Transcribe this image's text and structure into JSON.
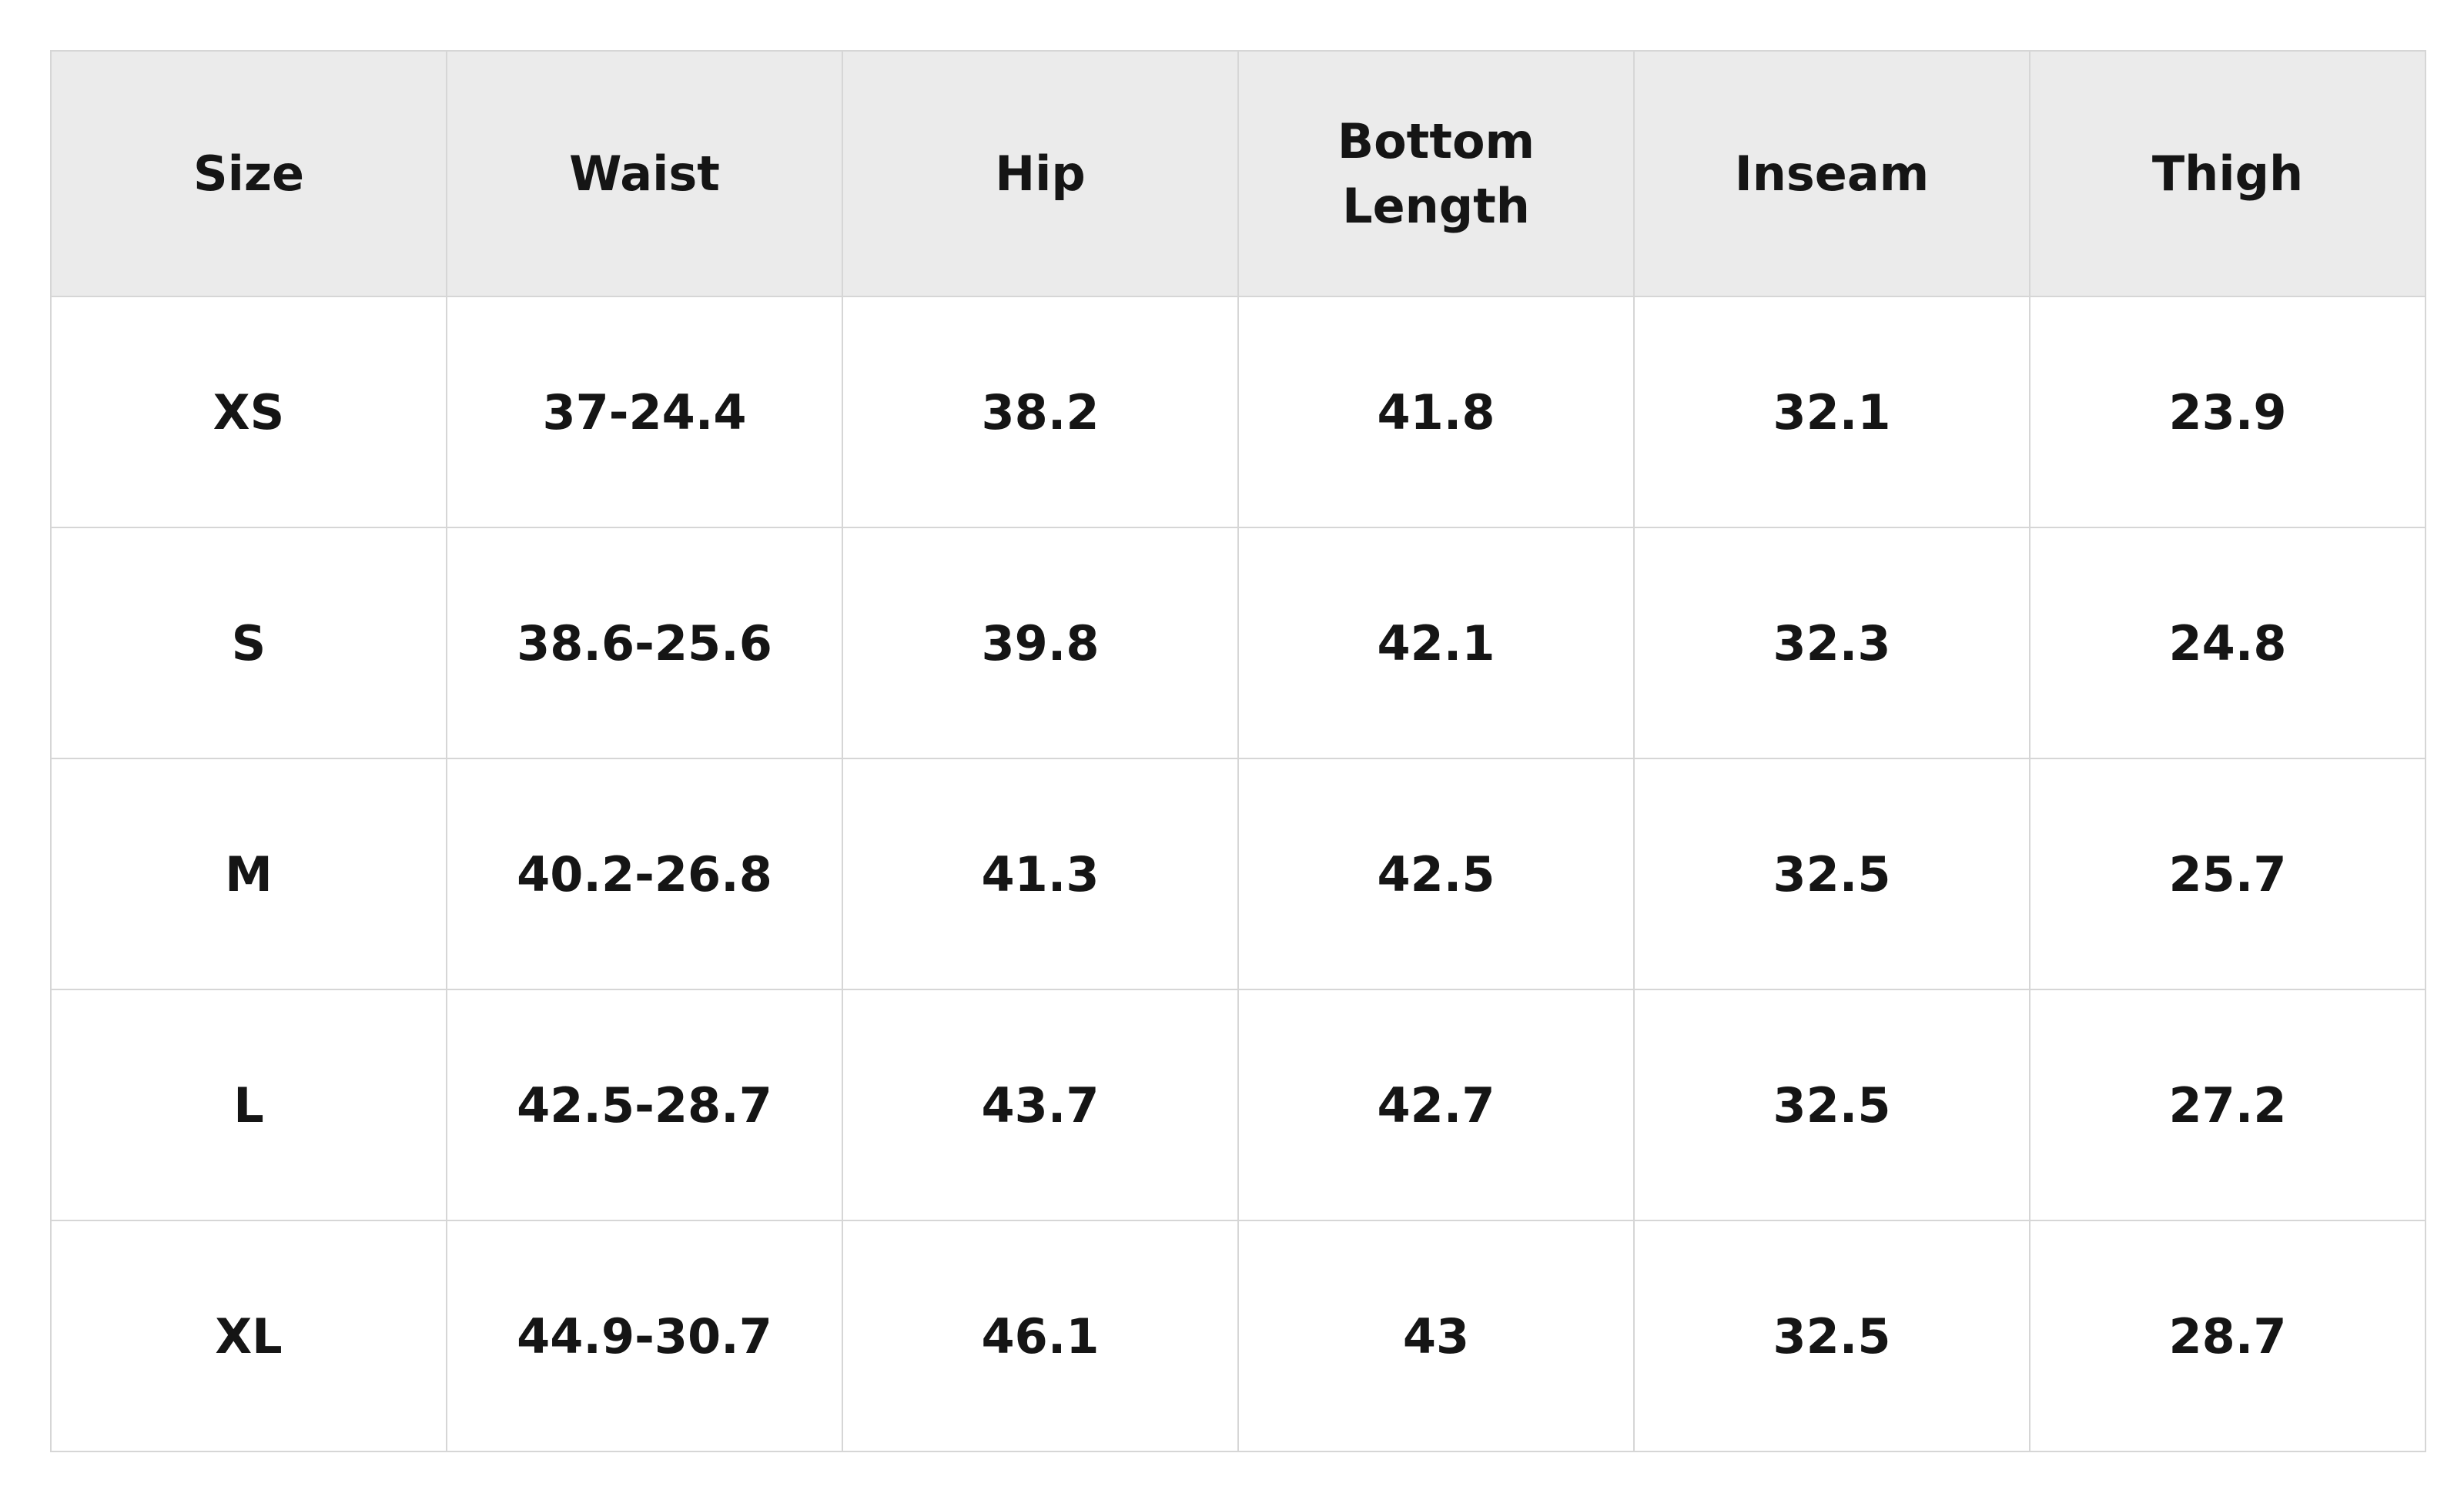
{
  "table": {
    "headers": [
      "Size",
      "Waist",
      "Hip",
      "Bottom Length",
      "Inseam",
      "Thigh"
    ],
    "rows": [
      [
        "XS",
        "37-24.4",
        38.2,
        41.8,
        32.1,
        23.9
      ],
      [
        "S",
        "38.6-25.6",
        39.8,
        42.1,
        32.3,
        24.8
      ],
      [
        "M",
        "40.2-26.8",
        41.3,
        42.5,
        32.5,
        25.7
      ],
      [
        "L",
        "42.5-28.7",
        43.7,
        42.7,
        32.5,
        27.2
      ],
      [
        "XL",
        "44.9-30.7",
        46.1,
        43,
        32.5,
        28.7
      ]
    ]
  }
}
